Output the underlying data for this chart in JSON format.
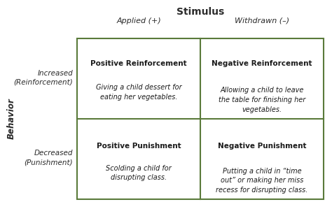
{
  "title": "Stimulus",
  "col_headers": [
    "Applied (+)",
    "Withdrawn (–)"
  ],
  "row_headers_top_line1": "Increased",
  "row_headers_top_line2": "(Reinforcement)",
  "row_headers_bot_line1": "Decreased",
  "row_headers_bot_line2": "(Punishment)",
  "behavior_label": "Behavior",
  "cells": [
    {
      "title": "Positive Reinforcement",
      "body": "Giving a child dessert for\neating her vegetables."
    },
    {
      "title": "Negative Reinforcement",
      "body": "Allowing a child to leave\nthe table for finishing her\nvegetables."
    },
    {
      "title": "Positive Punishment",
      "body": "Scolding a child for\ndisrupting class."
    },
    {
      "title": "Negative Punishment",
      "body": "Putting a child in “time\nout” or making her miss\nrecess for disrupting class."
    }
  ],
  "grid_color": "#5a7a3a",
  "bg_color": "#ffffff",
  "text_color": "#1a1a1a",
  "header_color": "#2a2a2a",
  "cell_title_fontsize": 7.5,
  "cell_body_fontsize": 7.0,
  "col_header_fontsize": 8.0,
  "row_header_fontsize": 7.5,
  "title_fontsize": 10.0,
  "behavior_fontsize": 8.5
}
